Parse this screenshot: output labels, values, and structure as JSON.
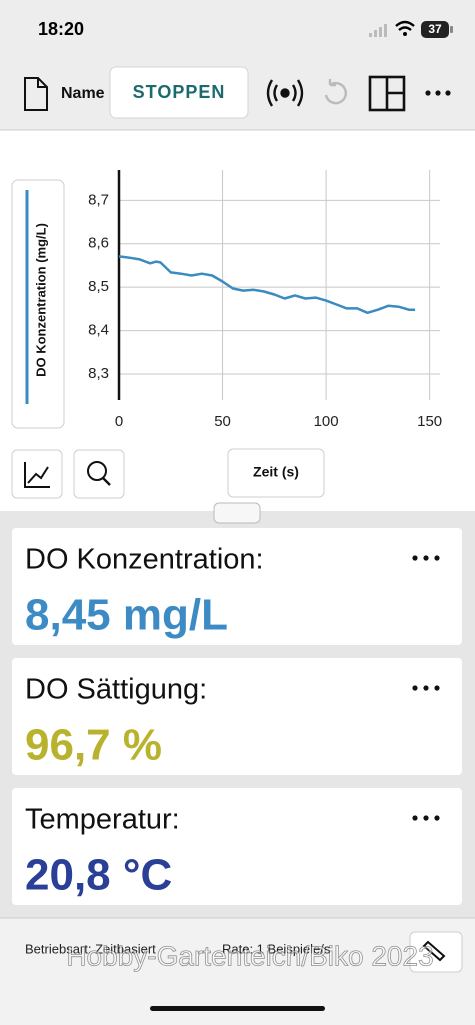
{
  "status_bar": {
    "time": "18:20",
    "battery": "37"
  },
  "toolbar": {
    "name": "Name",
    "button": "STOPPEN"
  },
  "chart_data": {
    "type": "line",
    "y_label": "DO Konzentration (mg/L)",
    "x_label": "Zeit (s)",
    "x": [
      0,
      5,
      10,
      15,
      18,
      20,
      25,
      30,
      35,
      40,
      45,
      50,
      55,
      60,
      65,
      70,
      75,
      80,
      85,
      90,
      95,
      100,
      105,
      110,
      115,
      120,
      125,
      130,
      135,
      140,
      143
    ],
    "series": [
      {
        "color": "#3a8bbf",
        "values": [
          8.571,
          8.568,
          8.564,
          8.555,
          8.559,
          8.557,
          8.534,
          8.531,
          8.527,
          8.531,
          8.527,
          8.513,
          8.497,
          8.492,
          8.494,
          8.49,
          8.483,
          8.474,
          8.481,
          8.474,
          8.476,
          8.469,
          8.46,
          8.451,
          8.451,
          8.441,
          8.448,
          8.457,
          8.455,
          8.448,
          8.448
        ]
      }
    ],
    "xlim": [
      0,
      155
    ],
    "xticks": [
      0,
      50,
      100,
      150
    ],
    "ylim": [
      8.24,
      8.77
    ],
    "yticks": [
      {
        "value": 8.3,
        "label": "8,3"
      },
      {
        "value": 8.4,
        "label": "8,4"
      },
      {
        "value": 8.5,
        "label": "8,5"
      },
      {
        "value": 8.6,
        "label": "8,6"
      },
      {
        "value": 8.7,
        "label": "8,7"
      }
    ],
    "grid": true
  },
  "readouts": [
    {
      "label": "DO Konzentration:",
      "value": "8,45 mg/L",
      "color": "#3d8bc4"
    },
    {
      "label": "DO Sättigung:",
      "value": "96,7 %",
      "color": "#b8b22c"
    },
    {
      "label": "Temperatur:",
      "value": "20,8 °C",
      "color": "#2a3f96"
    }
  ],
  "footer": {
    "mode": "Betriebsart: Zeitbasiert",
    "rate": "Rate: 1 Beispiele/s"
  },
  "watermark": "Hobby-Gartenteich/Biko 2023"
}
